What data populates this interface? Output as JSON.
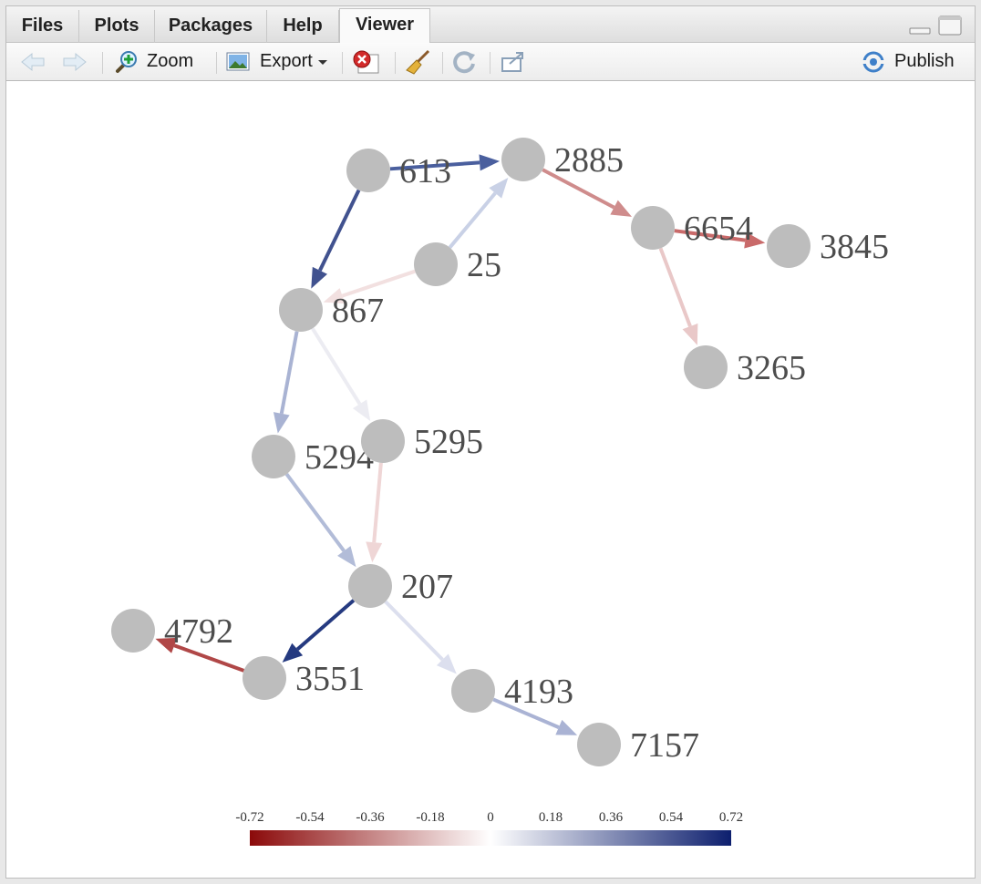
{
  "tabs": [
    {
      "label": "Files",
      "active": false
    },
    {
      "label": "Plots",
      "active": false
    },
    {
      "label": "Packages",
      "active": false
    },
    {
      "label": "Help",
      "active": false
    },
    {
      "label": "Viewer",
      "active": true
    }
  ],
  "toolbar": {
    "zoom_label": "Zoom",
    "export_label": "Export",
    "publish_label": "Publish"
  },
  "graph": {
    "nodes": [
      "613",
      "2885",
      "6654",
      "3845",
      "25",
      "867",
      "3265",
      "5294",
      "5295",
      "207",
      "4792",
      "3551",
      "4193",
      "7157"
    ],
    "edges": [
      {
        "from": "613",
        "to": "2885",
        "color": "#4a5f9e"
      },
      {
        "from": "613",
        "to": "867",
        "color": "#41528f"
      },
      {
        "from": "25",
        "to": "2885",
        "color": "#c9d1e6"
      },
      {
        "from": "25",
        "to": "867",
        "color": "#f2e0e0"
      },
      {
        "from": "2885",
        "to": "6654",
        "color": "#cf8c8c"
      },
      {
        "from": "6654",
        "to": "3845",
        "color": "#c96a6a"
      },
      {
        "from": "6654",
        "to": "3265",
        "color": "#e9c8c8"
      },
      {
        "from": "867",
        "to": "5294",
        "color": "#a9b3d3"
      },
      {
        "from": "867",
        "to": "5295",
        "color": "#ececf2"
      },
      {
        "from": "5294",
        "to": "207",
        "color": "#b2bcd8"
      },
      {
        "from": "5295",
        "to": "207",
        "color": "#efd6d6"
      },
      {
        "from": "207",
        "to": "3551",
        "color": "#253a80"
      },
      {
        "from": "207",
        "to": "4193",
        "color": "#dcdfee"
      },
      {
        "from": "3551",
        "to": "4792",
        "color": "#b04747"
      },
      {
        "from": "4193",
        "to": "7157",
        "color": "#aab3d4"
      }
    ],
    "legend": {
      "ticks": [
        "-0.72",
        "-0.54",
        "-0.36",
        "-0.18",
        "0",
        "0.18",
        "0.36",
        "0.54",
        "0.72"
      ],
      "color_low": "#8b0a0a",
      "color_mid": "#ffffff",
      "color_high": "#0d1f6e"
    }
  }
}
